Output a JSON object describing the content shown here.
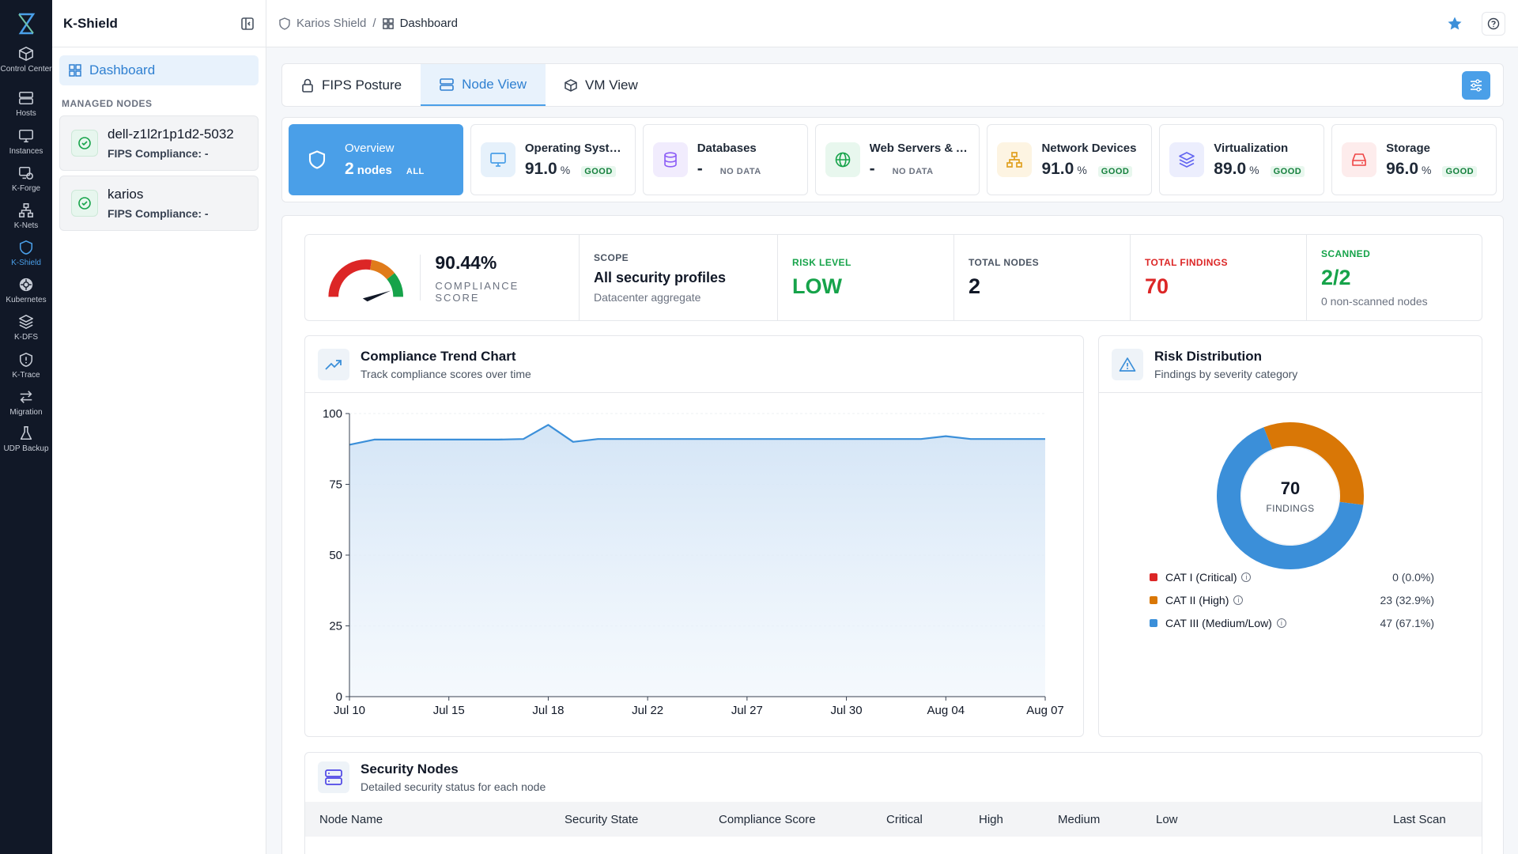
{
  "app": {
    "name": "K-Shield"
  },
  "rail": [
    {
      "label": "Control Center",
      "icon": "cube-icon"
    },
    {
      "label": "Hosts",
      "icon": "server-icon"
    },
    {
      "label": "Instances",
      "icon": "monitor-icon"
    },
    {
      "label": "K-Forge",
      "icon": "forge-icon"
    },
    {
      "label": "K-Nets",
      "icon": "network-icon"
    },
    {
      "label": "K-Shield",
      "icon": "shield-icon",
      "active": true
    },
    {
      "label": "Kubernetes",
      "icon": "kubernetes-icon"
    },
    {
      "label": "K-DFS",
      "icon": "layers-icon"
    },
    {
      "label": "K-Trace",
      "icon": "trace-shield-icon"
    },
    {
      "label": "Migration",
      "icon": "arrows-icon"
    },
    {
      "label": "UDP Backup",
      "icon": "flask-icon"
    }
  ],
  "sidebar": {
    "title": "K-Shield",
    "dashboard_label": "Dashboard",
    "section_label": "MANAGED NODES",
    "nodes": [
      {
        "name": "dell-z1l2r1p1d2-5032",
        "status": "FIPS Compliance: -"
      },
      {
        "name": "karios",
        "status": "FIPS Compliance: -"
      }
    ]
  },
  "breadcrumb": {
    "root": "Karios Shield",
    "separator": "/",
    "current": "Dashboard"
  },
  "tabs": [
    {
      "label": "FIPS Posture",
      "icon": "lock-icon"
    },
    {
      "label": "Node View",
      "icon": "server-icon",
      "active": true
    },
    {
      "label": "VM View",
      "icon": "cube-icon"
    }
  ],
  "categories": {
    "overview": {
      "title": "Overview",
      "num": "2",
      "unit": "nodes",
      "badge": "ALL"
    },
    "items": [
      {
        "title": "Operating Syste...",
        "num": "91.0",
        "unit": "%",
        "badge": "GOOD",
        "icon": "monitor-icon",
        "color": "#4a9fe8",
        "bg": "#e6f1fb"
      },
      {
        "title": "Databases",
        "num": "-",
        "unit": "",
        "badge": "NO DATA",
        "icon": "database-icon",
        "color": "#8b5cf6",
        "bg": "#f1ecfd"
      },
      {
        "title": "Web Servers & A...",
        "num": "-",
        "unit": "",
        "badge": "NO DATA",
        "icon": "globe-icon",
        "color": "#16a34a",
        "bg": "#e8f7ee"
      },
      {
        "title": "Network Devices",
        "num": "91.0",
        "unit": "%",
        "badge": "GOOD",
        "icon": "network-icon",
        "color": "#e0a020",
        "bg": "#fdf4e2"
      },
      {
        "title": "Virtualization",
        "num": "89.0",
        "unit": "%",
        "badge": "GOOD",
        "icon": "layers-icon",
        "color": "#6366f1",
        "bg": "#eceefd"
      },
      {
        "title": "Storage",
        "num": "96.0",
        "unit": "%",
        "badge": "GOOD",
        "icon": "storage-icon",
        "color": "#ef4444",
        "bg": "#fdecec"
      }
    ]
  },
  "stats": {
    "score": "90.44%",
    "score_label": "COMPLIANCE SCORE",
    "gauge_fraction": 0.9044,
    "scope_label": "SCOPE",
    "scope_value": "All security profiles",
    "scope_sub": "Datacenter aggregate",
    "risk_label": "RISK LEVEL",
    "risk_value": "LOW",
    "nodes_label": "TOTAL NODES",
    "nodes_value": "2",
    "findings_label": "TOTAL FINDINGS",
    "findings_value": "70",
    "scanned_label": "SCANNED",
    "scanned_value": "2/2",
    "scanned_sub": "0 non-scanned nodes",
    "colors": {
      "green": "#16a34a",
      "red": "#dc2626"
    }
  },
  "trend": {
    "title": "Compliance Trend Chart",
    "subtitle": "Track compliance scores over time"
  },
  "chart_data": [
    {
      "type": "area",
      "title": "",
      "xlabel": "",
      "ylabel": "",
      "ylim": [
        0,
        100
      ],
      "yticks": [
        0,
        25,
        50,
        75,
        100
      ],
      "xticks": [
        "Jul 10",
        "Jul 15",
        "Jul 18",
        "Jul 22",
        "Jul 27",
        "Jul 30",
        "Aug 04",
        "Aug 07"
      ],
      "x": [
        "2024-07-10",
        "2024-07-11",
        "2024-07-12",
        "2024-07-13",
        "2024-07-14",
        "2024-07-15",
        "2024-07-16",
        "2024-07-17",
        "2024-07-18",
        "2024-07-19",
        "2024-07-20",
        "2024-07-21",
        "2024-07-22",
        "2024-07-23",
        "2024-07-24",
        "2024-07-25",
        "2024-07-26",
        "2024-07-27",
        "2024-07-28",
        "2024-07-29",
        "2024-07-30",
        "2024-07-31",
        "2024-08-01",
        "2024-08-02",
        "2024-08-03",
        "2024-08-04",
        "2024-08-05",
        "2024-08-06",
        "2024-08-07"
      ],
      "values": [
        89,
        90.8,
        90.8,
        90.8,
        90.8,
        90.8,
        90.8,
        91,
        96,
        90,
        91,
        91,
        91,
        91,
        91,
        91,
        91,
        91,
        91,
        91,
        91,
        91,
        91,
        91,
        92,
        91,
        91,
        91,
        91
      ],
      "color": "#3b8fd9"
    },
    {
      "type": "pie",
      "title": "",
      "labels": [
        "CAT I (Critical)",
        "CAT II (High)",
        "CAT III (Medium/Low)"
      ],
      "values": [
        0,
        23,
        47
      ],
      "colors": [
        "#dc2626",
        "#d97706",
        "#3b8fd9"
      ]
    }
  ],
  "risk": {
    "title": "Risk Distribution",
    "subtitle": "Findings by severity category",
    "center_value": "70",
    "center_label": "FINDINGS",
    "legend": [
      {
        "label": "CAT I (Critical)",
        "value": "0 (0.0%)",
        "color": "#dc2626"
      },
      {
        "label": "CAT II (High)",
        "value": "23 (32.9%)",
        "color": "#d97706"
      },
      {
        "label": "CAT III (Medium/Low)",
        "value": "47 (67.1%)",
        "color": "#3b8fd9"
      }
    ]
  },
  "security_nodes": {
    "title": "Security Nodes",
    "subtitle": "Detailed security status for each node",
    "columns": [
      "Node Name",
      "Security State",
      "Compliance Score",
      "Critical",
      "High",
      "Medium",
      "Low",
      "Last Scan"
    ]
  }
}
